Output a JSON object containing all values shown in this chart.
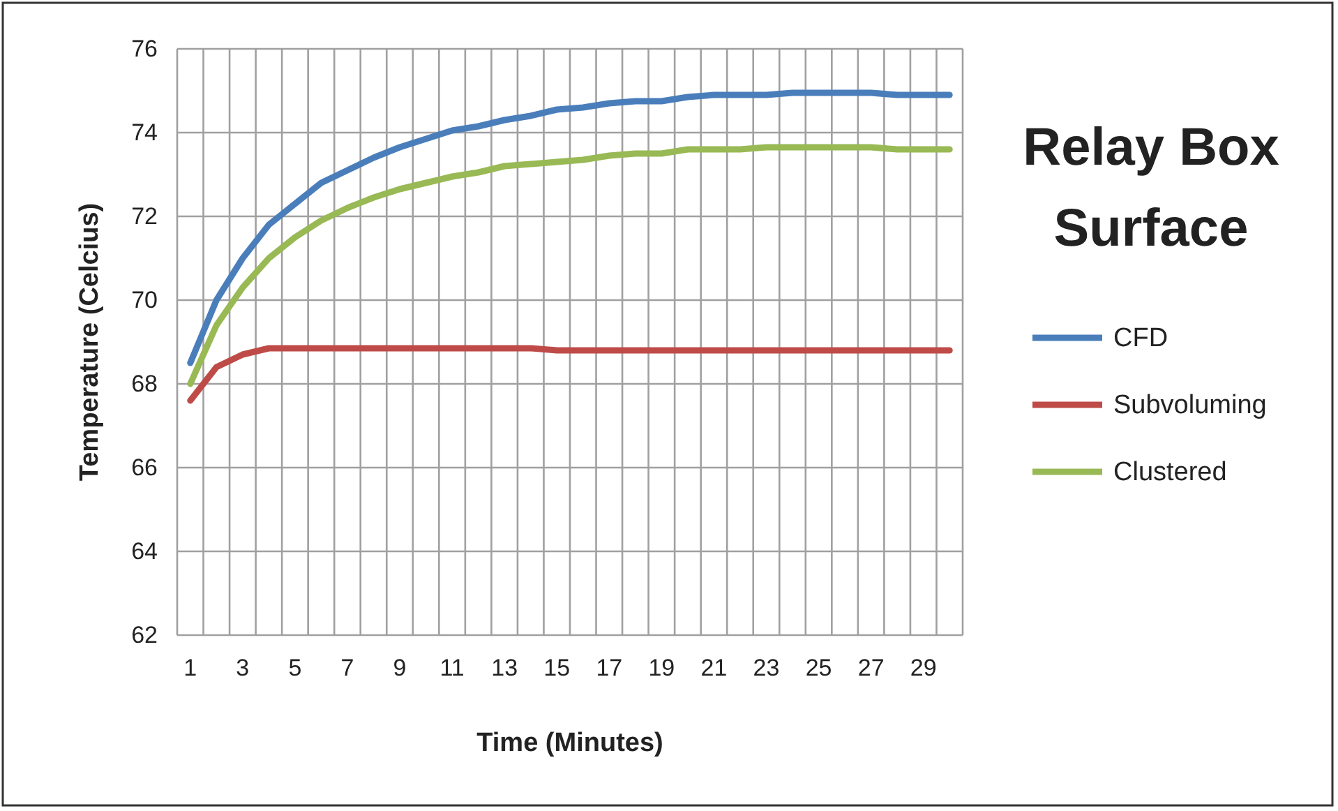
{
  "chart_data": {
    "type": "line",
    "title": "Relay Box Surface",
    "xlabel": "Time (Minutes)",
    "ylabel": "Temperature (Celcius)",
    "x": [
      1,
      2,
      3,
      4,
      5,
      6,
      7,
      8,
      9,
      10,
      11,
      12,
      13,
      14,
      15,
      16,
      17,
      18,
      19,
      20,
      21,
      22,
      23,
      24,
      25,
      26,
      27,
      28,
      29,
      30
    ],
    "xlim": [
      0.5,
      30.5
    ],
    "xticks": [
      {
        "value": 0.5,
        "label": null
      },
      1,
      {
        "value": 1.5,
        "label": null
      },
      {
        "value": 2.5,
        "label": null
      },
      3,
      {
        "value": 3.5,
        "label": null
      },
      {
        "value": 4.5,
        "label": null
      },
      5,
      {
        "value": 5.5,
        "label": null
      },
      {
        "value": 6.5,
        "label": null
      },
      7,
      {
        "value": 7.5,
        "label": null
      },
      {
        "value": 8.5,
        "label": null
      },
      9,
      {
        "value": 9.5,
        "label": null
      },
      {
        "value": 10.5,
        "label": null
      },
      11,
      {
        "value": 11.5,
        "label": null
      },
      {
        "value": 12.5,
        "label": null
      },
      13,
      {
        "value": 13.5,
        "label": null
      },
      {
        "value": 14.5,
        "label": null
      },
      15,
      {
        "value": 15.5,
        "label": null
      },
      {
        "value": 16.5,
        "label": null
      },
      17,
      {
        "value": 17.5,
        "label": null
      },
      {
        "value": 18.5,
        "label": null
      },
      19,
      {
        "value": 19.5,
        "label": null
      },
      {
        "value": 20.5,
        "label": null
      },
      21,
      {
        "value": 21.5,
        "label": null
      },
      {
        "value": 22.5,
        "label": null
      },
      23,
      {
        "value": 23.5,
        "label": null
      },
      {
        "value": 24.5,
        "label": null
      },
      25,
      {
        "value": 25.5,
        "label": null
      },
      {
        "value": 26.5,
        "label": null
      },
      27,
      {
        "value": 27.5,
        "label": null
      },
      {
        "value": 28.5,
        "label": null
      },
      29,
      {
        "value": 29.5,
        "label": null
      },
      {
        "value": 30.5,
        "label": null
      }
    ],
    "series": [
      {
        "name": "CFD",
        "color": "#4a7ebb",
        "values": [
          68.5,
          70.0,
          71.0,
          71.8,
          72.3,
          72.8,
          73.1,
          73.4,
          73.65,
          73.85,
          74.05,
          74.15,
          74.3,
          74.4,
          74.55,
          74.6,
          74.7,
          74.75,
          74.75,
          74.85,
          74.9,
          74.9,
          74.9,
          74.95,
          74.95,
          74.95,
          74.95,
          74.9,
          74.9,
          74.9
        ]
      },
      {
        "name": "Subvoluming",
        "color": "#be4b48",
        "values": [
          67.6,
          68.4,
          68.7,
          68.85,
          68.85,
          68.85,
          68.85,
          68.85,
          68.85,
          68.85,
          68.85,
          68.85,
          68.85,
          68.85,
          68.8,
          68.8,
          68.8,
          68.8,
          68.8,
          68.8,
          68.8,
          68.8,
          68.8,
          68.8,
          68.8,
          68.8,
          68.8,
          68.8,
          68.8,
          68.8
        ]
      },
      {
        "name": "Clustered",
        "color": "#98b954",
        "values": [
          68.0,
          69.4,
          70.3,
          71.0,
          71.5,
          71.9,
          72.2,
          72.45,
          72.65,
          72.8,
          72.95,
          73.05,
          73.2,
          73.25,
          73.3,
          73.35,
          73.45,
          73.5,
          73.5,
          73.6,
          73.6,
          73.6,
          73.65,
          73.65,
          73.65,
          73.65,
          73.65,
          73.6,
          73.6,
          73.6
        ]
      }
    ],
    "ylim": [
      62,
      76
    ],
    "yticks": [
      62,
      64,
      66,
      68,
      70,
      72,
      74,
      76
    ],
    "grid": true,
    "legend": "right",
    "marker": "none",
    "line_style": "solid"
  }
}
